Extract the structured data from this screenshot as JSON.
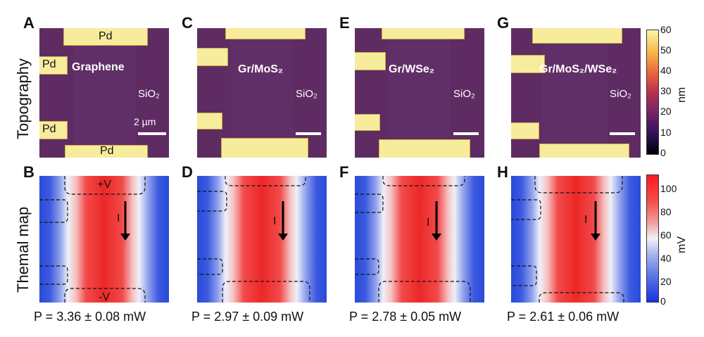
{
  "row_labels": {
    "top": "Topography",
    "bottom": "Themal  map"
  },
  "panels_top": [
    {
      "letter": "A",
      "material": "Graphene",
      "substrate": "SiO₂",
      "contact": "Pd",
      "scale_bar": "2 µm"
    },
    {
      "letter": "C",
      "material": "Gr/MoS₂",
      "substrate": "SiO₂"
    },
    {
      "letter": "E",
      "material": "Gr/WSe₂",
      "substrate": "SiO₂"
    },
    {
      "letter": "G",
      "material": "Gr/MoS₂/WSe₂",
      "substrate": "SiO₂"
    }
  ],
  "panels_bottom": [
    {
      "letter": "B",
      "power": "P = 3.36 ± 0.08 mW",
      "plus_v": "+V",
      "minus_v": "-V",
      "current": "I"
    },
    {
      "letter": "D",
      "power": "P = 2.97 ± 0.09 mW",
      "current": "I"
    },
    {
      "letter": "F",
      "power": "P = 2.78 ± 0.05 mW",
      "current": "I"
    },
    {
      "letter": "H",
      "power": "P = 2.61 ± 0.06 mW",
      "current": "I"
    }
  ],
  "colorbar_topo": {
    "unit": "nm",
    "ticks": [
      "60",
      "50",
      "40",
      "30",
      "20",
      "10",
      "0"
    ]
  },
  "colorbar_thermal": {
    "unit": "mV",
    "ticks": [
      "100",
      "80",
      "60",
      "40",
      "20",
      "0"
    ]
  }
}
